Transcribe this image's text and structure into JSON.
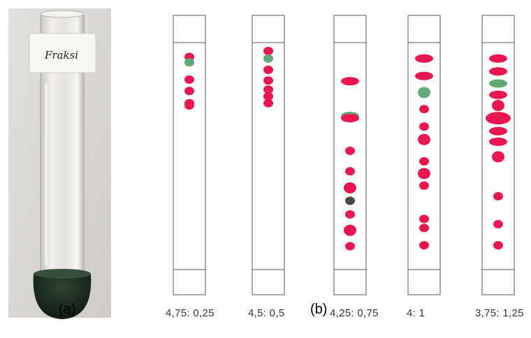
{
  "photo": {
    "tube_label_text": "Fraksi",
    "colors": {
      "background": "#d9d7d4",
      "glass": "#ece9e4",
      "liquid": "#1c2a1c",
      "label": "#f7f7f4",
      "ink": "#222222"
    }
  },
  "panel_labels": {
    "a": "(a)",
    "b": "(b)"
  },
  "colors": {
    "red": "#e8174f",
    "green": "#62a874",
    "dark": "#4a4a40",
    "outline": "#555555"
  },
  "plates": [
    {
      "ratio": "4,75: 0,25",
      "spots": [
        {
          "rf": 0.937,
          "size": "s",
          "color": "red"
        },
        {
          "rf": 0.913,
          "size": "s",
          "color": "green"
        },
        {
          "rf": 0.837,
          "size": "s",
          "color": "red"
        },
        {
          "rf": 0.787,
          "size": "s",
          "color": "red"
        },
        {
          "rf": 0.733,
          "size": "s",
          "color": "red"
        },
        {
          "rf": 0.723,
          "size": "s",
          "color": "red"
        }
      ]
    },
    {
      "ratio": "4,5: 0,5",
      "spots": [
        {
          "rf": 0.963,
          "size": "s",
          "color": "red"
        },
        {
          "rf": 0.93,
          "size": "s",
          "color": "green"
        },
        {
          "rf": 0.88,
          "size": "s",
          "color": "red"
        },
        {
          "rf": 0.833,
          "size": "s",
          "color": "red"
        },
        {
          "rf": 0.793,
          "size": "s",
          "color": "red"
        },
        {
          "rf": 0.763,
          "size": "s",
          "color": "red"
        },
        {
          "rf": 0.733,
          "size": "s",
          "color": "red"
        }
      ]
    },
    {
      "ratio": "4,25: 0,75",
      "spots": [
        {
          "rf": 0.83,
          "size": "l",
          "color": "red"
        },
        {
          "rf": 0.677,
          "size": "l",
          "color": "green"
        },
        {
          "rf": 0.667,
          "size": "l",
          "color": "red"
        },
        {
          "rf": 0.523,
          "size": "s",
          "color": "red"
        },
        {
          "rf": 0.433,
          "size": "s",
          "color": "red"
        },
        {
          "rf": 0.36,
          "size": "m",
          "color": "red"
        },
        {
          "rf": 0.303,
          "size": "s",
          "color": "dark"
        },
        {
          "rf": 0.243,
          "size": "s",
          "color": "red"
        },
        {
          "rf": 0.173,
          "size": "m",
          "color": "red"
        },
        {
          "rf": 0.103,
          "size": "s",
          "color": "red"
        }
      ]
    },
    {
      "ratio": "4: 1",
      "spots": [
        {
          "rf": 0.93,
          "size": "l",
          "color": "red"
        },
        {
          "rf": 0.853,
          "size": "l",
          "color": "red"
        },
        {
          "rf": 0.78,
          "size": "m",
          "color": "green"
        },
        {
          "rf": 0.707,
          "size": "s",
          "color": "red"
        },
        {
          "rf": 0.63,
          "size": "s",
          "color": "red"
        },
        {
          "rf": 0.573,
          "size": "m",
          "color": "red"
        },
        {
          "rf": 0.477,
          "size": "s",
          "color": "red"
        },
        {
          "rf": 0.423,
          "size": "m",
          "color": "red"
        },
        {
          "rf": 0.37,
          "size": "s",
          "color": "red"
        },
        {
          "rf": 0.223,
          "size": "s",
          "color": "red"
        },
        {
          "rf": 0.183,
          "size": "s",
          "color": "red"
        },
        {
          "rf": 0.107,
          "size": "s",
          "color": "red"
        }
      ]
    },
    {
      "ratio": "3,75: 1,25",
      "spots": [
        {
          "rf": 0.93,
          "size": "l",
          "color": "red"
        },
        {
          "rf": 0.873,
          "size": "l",
          "color": "red"
        },
        {
          "rf": 0.82,
          "size": "l",
          "color": "green"
        },
        {
          "rf": 0.77,
          "size": "l",
          "color": "red"
        },
        {
          "rf": 0.723,
          "size": "m",
          "color": "red"
        },
        {
          "rf": 0.667,
          "size": "xl",
          "color": "red"
        },
        {
          "rf": 0.61,
          "size": "l",
          "color": "red"
        },
        {
          "rf": 0.563,
          "size": "l",
          "color": "red"
        },
        {
          "rf": 0.497,
          "size": "m",
          "color": "red"
        },
        {
          "rf": 0.323,
          "size": "s",
          "color": "red"
        },
        {
          "rf": 0.2,
          "size": "s",
          "color": "red"
        },
        {
          "rf": 0.107,
          "size": "s",
          "color": "red"
        }
      ]
    }
  ]
}
